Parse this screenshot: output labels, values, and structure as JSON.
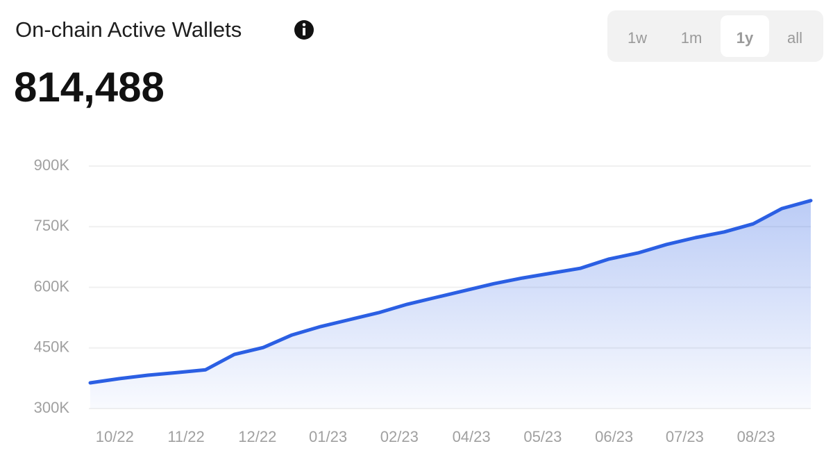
{
  "header": {
    "title": "On-chain Active Wallets",
    "value": "814,488"
  },
  "range_buttons": {
    "options": [
      "1w",
      "1m",
      "1y",
      "all"
    ],
    "selected": 2
  },
  "chart_data": {
    "type": "area",
    "x": [
      0,
      4,
      8,
      12,
      16,
      20,
      24,
      28,
      32,
      36,
      40,
      44,
      48,
      52,
      56,
      60,
      64,
      68,
      72,
      76,
      80,
      84,
      88,
      92,
      96,
      100
    ],
    "series": [
      {
        "name": "Active Wallets",
        "color": "#2b5fe3",
        "values": [
          363600,
          374000,
          382500,
          389000,
          396000,
          434000,
          451000,
          482000,
          503000,
          520000,
          537000,
          558000,
          575000,
          592000,
          609000,
          623000,
          635000,
          647000,
          670000,
          685000,
          706000,
          723000,
          737000,
          757000,
          795000,
          814488
        ]
      }
    ],
    "xlim": [
      0,
      100
    ],
    "xticks": [
      {
        "value": 3.4,
        "label": "10/22"
      },
      {
        "value": 13.3,
        "label": "11/22"
      },
      {
        "value": 23.2,
        "label": "12/22"
      },
      {
        "value": 33.0,
        "label": "01/23"
      },
      {
        "value": 42.9,
        "label": "02/23"
      },
      {
        "value": 52.9,
        "label": "04/23"
      },
      {
        "value": 62.8,
        "label": "05/23"
      },
      {
        "value": 72.7,
        "label": "06/23"
      },
      {
        "value": 82.5,
        "label": "07/23"
      },
      {
        "value": 92.4,
        "label": "08/23"
      }
    ],
    "ylim": [
      300000,
      900000
    ],
    "yticks": [
      {
        "value": 300000,
        "label": "300K"
      },
      {
        "value": 450000,
        "label": "450K"
      },
      {
        "value": 600000,
        "label": "600K"
      },
      {
        "value": 750000,
        "label": "750K"
      },
      {
        "value": 900000,
        "label": "900K"
      }
    ],
    "grid": true
  }
}
